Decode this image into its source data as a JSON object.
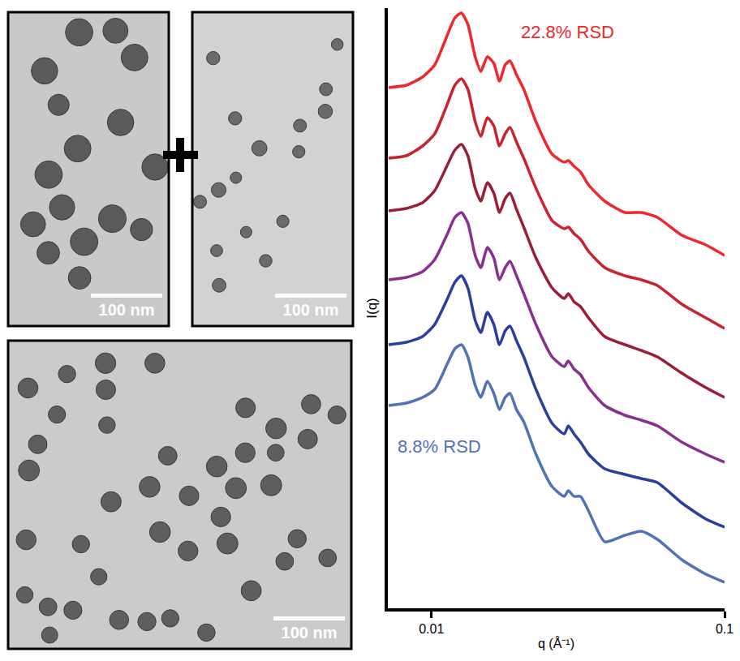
{
  "chart_data": {
    "type": "line",
    "x_label": "q (Å⁻¹)",
    "y_label": "I(q)",
    "log": "x",
    "grid": false,
    "tick_labels": "x",
    "xlim": [
      0.0071,
      0.1
    ],
    "xticks": [
      0.01,
      0.1
    ],
    "ylim": [
      0,
      740
    ],
    "x": [
      0.00714,
      0.00821,
      0.00932,
      0.01026,
      0.01128,
      0.01202,
      0.01265,
      0.01331,
      0.0141,
      0.01474,
      0.01551,
      0.01632,
      0.01706,
      0.01784,
      0.01853,
      0.0195,
      0.02065,
      0.02272,
      0.0258,
      0.02838,
      0.0293,
      0.03064,
      0.03224,
      0.03436,
      0.03901,
      0.04573,
      0.05196,
      0.05898,
      0.07139,
      0.0864,
      0.1
    ],
    "series": [
      {
        "color": "#f0282c",
        "values": [
          642,
          645,
          655,
          670,
          705,
          728,
          734,
          720,
          680,
          662,
          680,
          672,
          650,
          670,
          675,
          658,
          640,
          600,
          560,
          550,
          552,
          545,
          538,
          522,
          502,
          488,
          488,
          482,
          460,
          448,
          435
        ]
      },
      {
        "color": "#cc2230",
        "values": [
          555,
          558,
          570,
          585,
          620,
          645,
          653,
          640,
          600,
          582,
          605,
          595,
          570,
          585,
          593,
          575,
          555,
          518,
          478,
          468,
          470,
          462,
          455,
          440,
          420,
          410,
          405,
          398,
          375,
          358,
          345
        ]
      },
      {
        "color": "#9c1e36",
        "values": [
          490,
          493,
          500,
          515,
          545,
          565,
          572,
          558,
          518,
          502,
          525,
          512,
          488,
          505,
          512,
          492,
          470,
          432,
          395,
          382,
          388,
          378,
          372,
          358,
          335,
          325,
          318,
          310,
          290,
          272,
          260
        ]
      },
      {
        "color": "#8a2e92",
        "values": [
          405,
          408,
          415,
          430,
          460,
          482,
          488,
          475,
          435,
          420,
          445,
          432,
          405,
          420,
          428,
          410,
          388,
          350,
          310,
          298,
          305,
          295,
          288,
          272,
          250,
          238,
          232,
          225,
          205,
          190,
          180
        ]
      },
      {
        "color": "#2b3f9e",
        "values": [
          325,
          328,
          335,
          350,
          380,
          402,
          410,
          395,
          355,
          340,
          365,
          350,
          325,
          342,
          348,
          330,
          310,
          270,
          228,
          215,
          225,
          215,
          205,
          190,
          172,
          165,
          160,
          155,
          130,
          110,
          100
        ]
      },
      {
        "color": "#4f73b4",
        "values": [
          250,
          253,
          260,
          270,
          300,
          320,
          325,
          310,
          275,
          260,
          280,
          265,
          245,
          260,
          265,
          245,
          230,
          190,
          150,
          138,
          145,
          138,
          138,
          120,
          82,
          90,
          95,
          85,
          60,
          42,
          32
        ]
      }
    ],
    "annotations": [
      {
        "text": "22.8% RSD",
        "color": "#f0282c"
      },
      {
        "text": "8.8% RSD",
        "color": "#4f73b4"
      }
    ]
  },
  "tem_images": [
    {
      "scale_bar": "100 nm"
    },
    {
      "scale_bar": "100 nm"
    },
    {
      "scale_bar": "100 nm"
    }
  ]
}
